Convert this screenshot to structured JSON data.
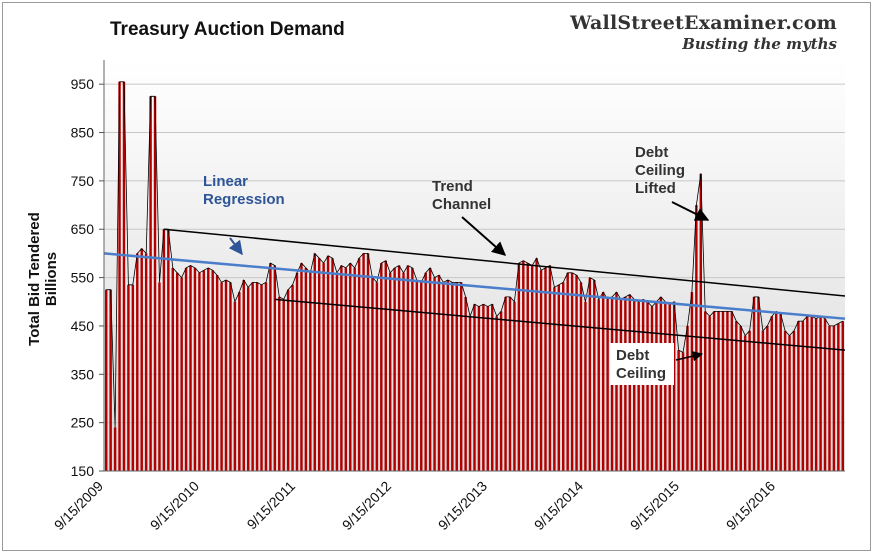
{
  "header": {
    "title": "Treasury Auction Demand",
    "brand": "WallStreetExaminer.com",
    "tagline": "Busting the myths"
  },
  "chart_data": {
    "type": "bar",
    "title": "Treasury Auction Demand",
    "ylabel": "Total Bid Tendered Billions",
    "ylabel_lines": [
      "Total Bid Tendered",
      "Billions"
    ],
    "ylim": [
      150,
      1000
    ],
    "yticks": [
      150,
      250,
      350,
      450,
      550,
      650,
      750,
      850,
      950
    ],
    "xlabels": [
      "9/15/2009",
      "9/15/2010",
      "9/15/2011",
      "9/15/2012",
      "9/15/2013",
      "9/15/2014",
      "9/15/2015",
      "9/15/2016"
    ],
    "grid": "horizontal",
    "background": "gradient-white-to-gray",
    "colors": {
      "bars": "#b20000",
      "bar_gap": "#ffffff",
      "line": "#000000",
      "regression": "#4a7ecb",
      "trend": "#000000"
    },
    "series": [
      {
        "values": [
          525,
          525,
          240,
          955,
          955,
          535,
          535,
          600,
          610,
          600,
          925,
          925,
          540,
          650,
          650,
          570,
          560,
          550,
          570,
          575,
          570,
          560,
          565,
          570,
          565,
          555,
          540,
          545,
          540,
          500,
          520,
          545,
          530,
          540,
          540,
          535,
          540,
          580,
          575,
          510,
          505,
          525,
          535,
          560,
          580,
          570,
          560,
          600,
          590,
          580,
          595,
          590,
          560,
          575,
          570,
          580,
          570,
          590,
          600,
          600,
          550,
          540,
          580,
          585,
          560,
          570,
          575,
          560,
          575,
          570,
          545,
          540,
          560,
          570,
          550,
          555,
          540,
          545,
          540,
          540,
          540,
          510,
          470,
          495,
          490,
          495,
          490,
          495,
          470,
          480,
          510,
          510,
          500,
          580,
          585,
          580,
          575,
          590,
          565,
          570,
          575,
          530,
          535,
          540,
          560,
          560,
          555,
          540,
          500,
          550,
          545,
          505,
          520,
          505,
          510,
          520,
          505,
          510,
          515,
          505,
          500,
          505,
          500,
          490,
          500,
          510,
          500,
          495,
          500,
          400,
          395,
          450,
          520,
          700,
          765,
          480,
          470,
          480,
          480,
          480,
          480,
          480,
          460,
          450,
          430,
          440,
          510,
          510,
          440,
          450,
          470,
          480,
          475,
          440,
          430,
          440,
          460,
          460,
          470,
          470,
          465,
          470,
          465,
          450,
          450,
          455,
          460
        ]
      }
    ],
    "annotations": [
      {
        "lines": [
          "Linear",
          "Regression"
        ],
        "color": "#2e5597"
      },
      {
        "lines": [
          "Trend",
          "Channel"
        ],
        "color": "#333333"
      },
      {
        "lines": [
          "Debt",
          "Ceiling",
          "Lifted"
        ],
        "color": "#333333"
      },
      {
        "lines": [
          "Debt",
          "Ceiling"
        ],
        "color": "#333333"
      }
    ],
    "regression": {
      "x_start": "9/15/2009",
      "y_start": 600,
      "x_end": "end",
      "y_end": 465
    },
    "trend_upper": {
      "y_start": 650,
      "y_end": 512
    },
    "trend_lower": {
      "y_start": 505,
      "y_end": 400
    }
  }
}
